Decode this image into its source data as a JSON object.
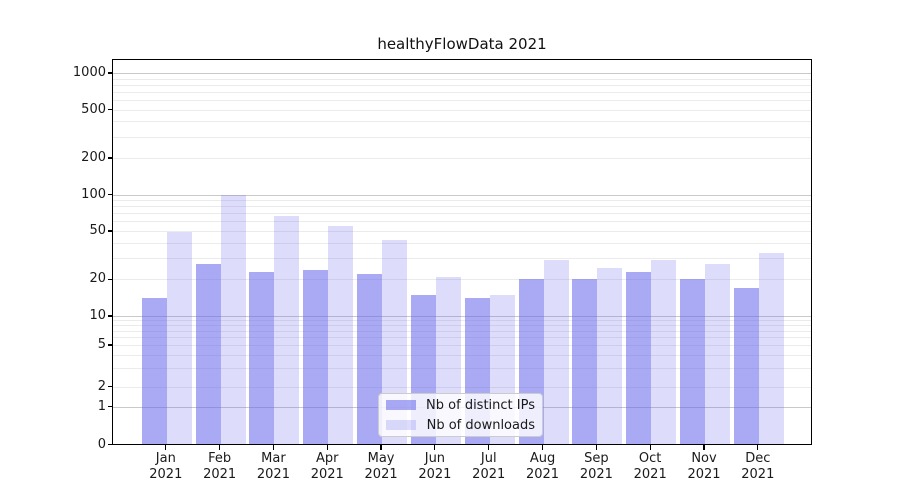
{
  "title": "healthyFlowData 2021",
  "chart_data": {
    "type": "bar",
    "title": "healthyFlowData 2021",
    "categories": [
      "Jan 2021",
      "Feb 2021",
      "Mar 2021",
      "Apr 2021",
      "May 2021",
      "Jun 2021",
      "Jul 2021",
      "Aug 2021",
      "Sep 2021",
      "Oct 2021",
      "Nov 2021",
      "Dec 2021"
    ],
    "series": [
      {
        "name": "Nb of distinct IPs",
        "color_key": "ips_bar",
        "values": [
          14,
          27,
          23,
          24,
          22,
          15,
          14,
          20,
          20,
          23,
          20,
          17
        ]
      },
      {
        "name": "Nb of downloads",
        "color_key": "downloads_bar",
        "values": [
          49,
          100,
          66,
          55,
          42,
          21,
          15,
          29,
          25,
          29,
          27,
          33
        ]
      }
    ],
    "yticks": [
      0,
      1,
      2,
      5,
      10,
      20,
      50,
      100,
      200,
      500,
      1000
    ],
    "ylim": [
      0,
      1500
    ],
    "yscale": "symlog",
    "xlabel": "",
    "ylabel": "",
    "grid": "horizontal major and minor gridlines",
    "legend_position": "lower center"
  },
  "legend": {
    "items": [
      {
        "label": "Nb of distinct IPs"
      },
      {
        "label": "Nb of downloads"
      }
    ]
  },
  "colors": {
    "ips_bar": "rgba(100,100,235,0.55)",
    "downloads_bar": "rgba(100,100,235,0.22)",
    "grid_major": "#c9c9c9",
    "grid_minor": "#ebebeb",
    "axis": "#000000",
    "text": "#1a1a1a",
    "legend_border": "#cccccc",
    "legend_bg": "rgba(255,255,255,0.8)"
  }
}
